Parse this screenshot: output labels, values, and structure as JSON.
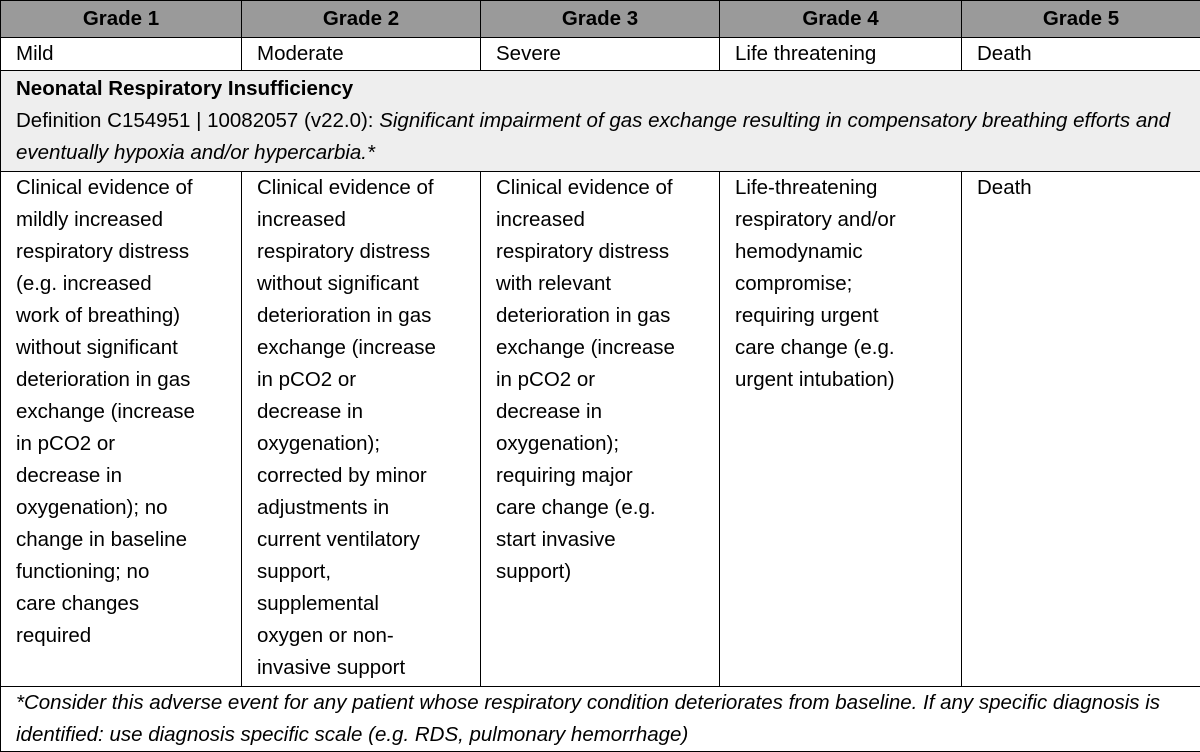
{
  "grades": [
    "Grade 1",
    "Grade 2",
    "Grade 3",
    "Grade 4",
    "Grade 5"
  ],
  "severity": [
    "Mild",
    "Moderate",
    "Severe",
    "Life threatening",
    "Death"
  ],
  "event": {
    "title": "Neonatal Respiratory Insufficiency",
    "definition_prefix": "Definition C154951 | 10082057 (v22.0): ",
    "definition_text": "Significant impairment of gas exchange resulting in compensatory breathing efforts and eventually hypoxia and/or hypercarbia.*"
  },
  "criteria": [
    "Clinical evidence of\nmildly increased\nrespiratory distress\n(e.g. increased\nwork of breathing)\nwithout significant\ndeterioration in gas\nexchange (increase\nin pCO2 or\ndecrease in\noxygenation); no\nchange in baseline\nfunctioning; no\ncare changes\nrequired",
    "Clinical evidence of\nincreased\nrespiratory distress\nwithout significant\ndeterioration in gas\nexchange (increase\nin pCO2 or\ndecrease in\noxygenation);\ncorrected by minor\nadjustments in\ncurrent ventilatory\nsupport,\nsupplemental\noxygen or non-\ninvasive support",
    "Clinical evidence of\nincreased\nrespiratory distress\nwith relevant\ndeterioration in gas\nexchange (increase\nin pCO2 or\ndecrease in\noxygenation);\nrequiring major\ncare change (e.g.\nstart invasive\nsupport)",
    "Life-threatening\nrespiratory and/or\nhemodynamic\ncompromise;\nrequiring urgent\ncare change (e.g.\nurgent intubation)",
    "Death"
  ],
  "footnote": "*Consider this adverse event for any patient whose respiratory condition deteriorates from baseline. If any specific diagnosis is identified: use diagnosis specific scale (e.g. RDS, pulmonary hemorrhage)"
}
